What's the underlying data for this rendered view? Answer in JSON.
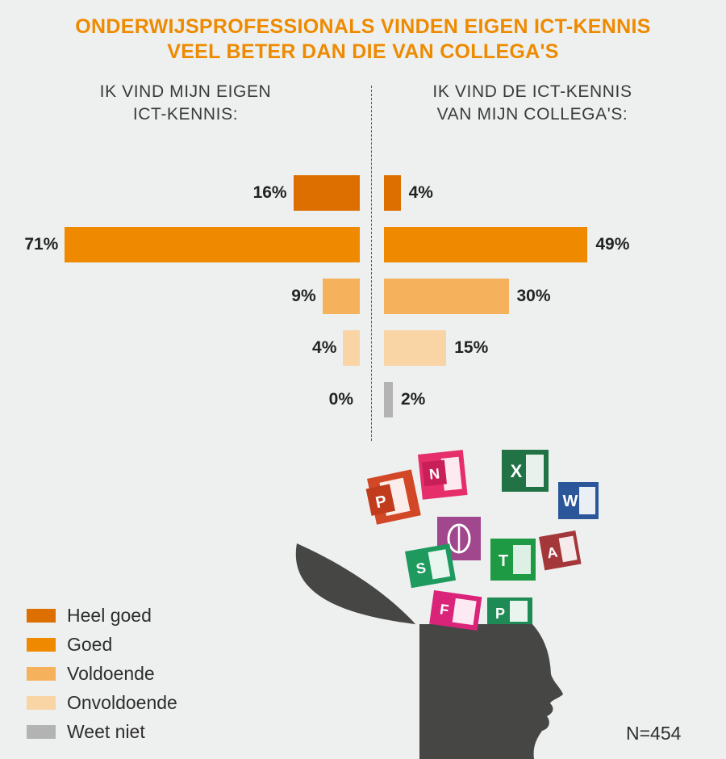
{
  "title_lines": [
    "ONDERWIJSPROFESSIONALS VINDEN EIGEN ICT-KENNIS",
    "VEEL BETER DAN DIE VAN COLLEGA'S"
  ],
  "left_heading": [
    "IK VIND MIJN EIGEN",
    "ICT-KENNIS:"
  ],
  "right_heading": [
    "IK VIND DE ICT-KENNIS",
    "VAN MIJN COLLEGA'S:"
  ],
  "n_label": "N=454",
  "chart_data": {
    "type": "bar",
    "orientation": "horizontal-diverging",
    "categories": [
      "Heel goed",
      "Goed",
      "Voldoende",
      "Onvoldoende",
      "Weet niet"
    ],
    "colors": [
      "#dc6f00",
      "#ef8900",
      "#f6b15c",
      "#f9d4a4",
      "#b3b3b3"
    ],
    "series": [
      {
        "values": [
          16,
          71,
          9,
          4,
          0
        ],
        "labels": [
          "16%",
          "71%",
          "9%",
          "4%",
          "0%"
        ]
      },
      {
        "values": [
          4,
          49,
          30,
          15,
          2
        ],
        "labels": [
          "4%",
          "49%",
          "30%",
          "15%",
          "2%"
        ]
      }
    ],
    "unit": "%",
    "legend_position": "bottom-left"
  },
  "icons": [
    {
      "name": "powerpoint-icon",
      "letter": "P",
      "color": "#d24726"
    },
    {
      "name": "onenote-icon",
      "letter": "N",
      "color": "#e62e6b"
    },
    {
      "name": "excel-icon",
      "letter": "X",
      "color": "#217346"
    },
    {
      "name": "word-icon",
      "letter": "W",
      "color": "#2b579a"
    },
    {
      "name": "sway-icon",
      "letter": "",
      "color": "#a0478d"
    },
    {
      "name": "sharepoint-icon",
      "letter": "S",
      "color": "#1e9a5e"
    },
    {
      "name": "teams-icon",
      "letter": "T",
      "color": "#1e9a45"
    },
    {
      "name": "access-icon",
      "letter": "A",
      "color": "#a4373a"
    },
    {
      "name": "forms-icon",
      "letter": "F",
      "color": "#d9247a"
    },
    {
      "name": "project-icon",
      "letter": "P",
      "color": "#1e8a55"
    }
  ]
}
